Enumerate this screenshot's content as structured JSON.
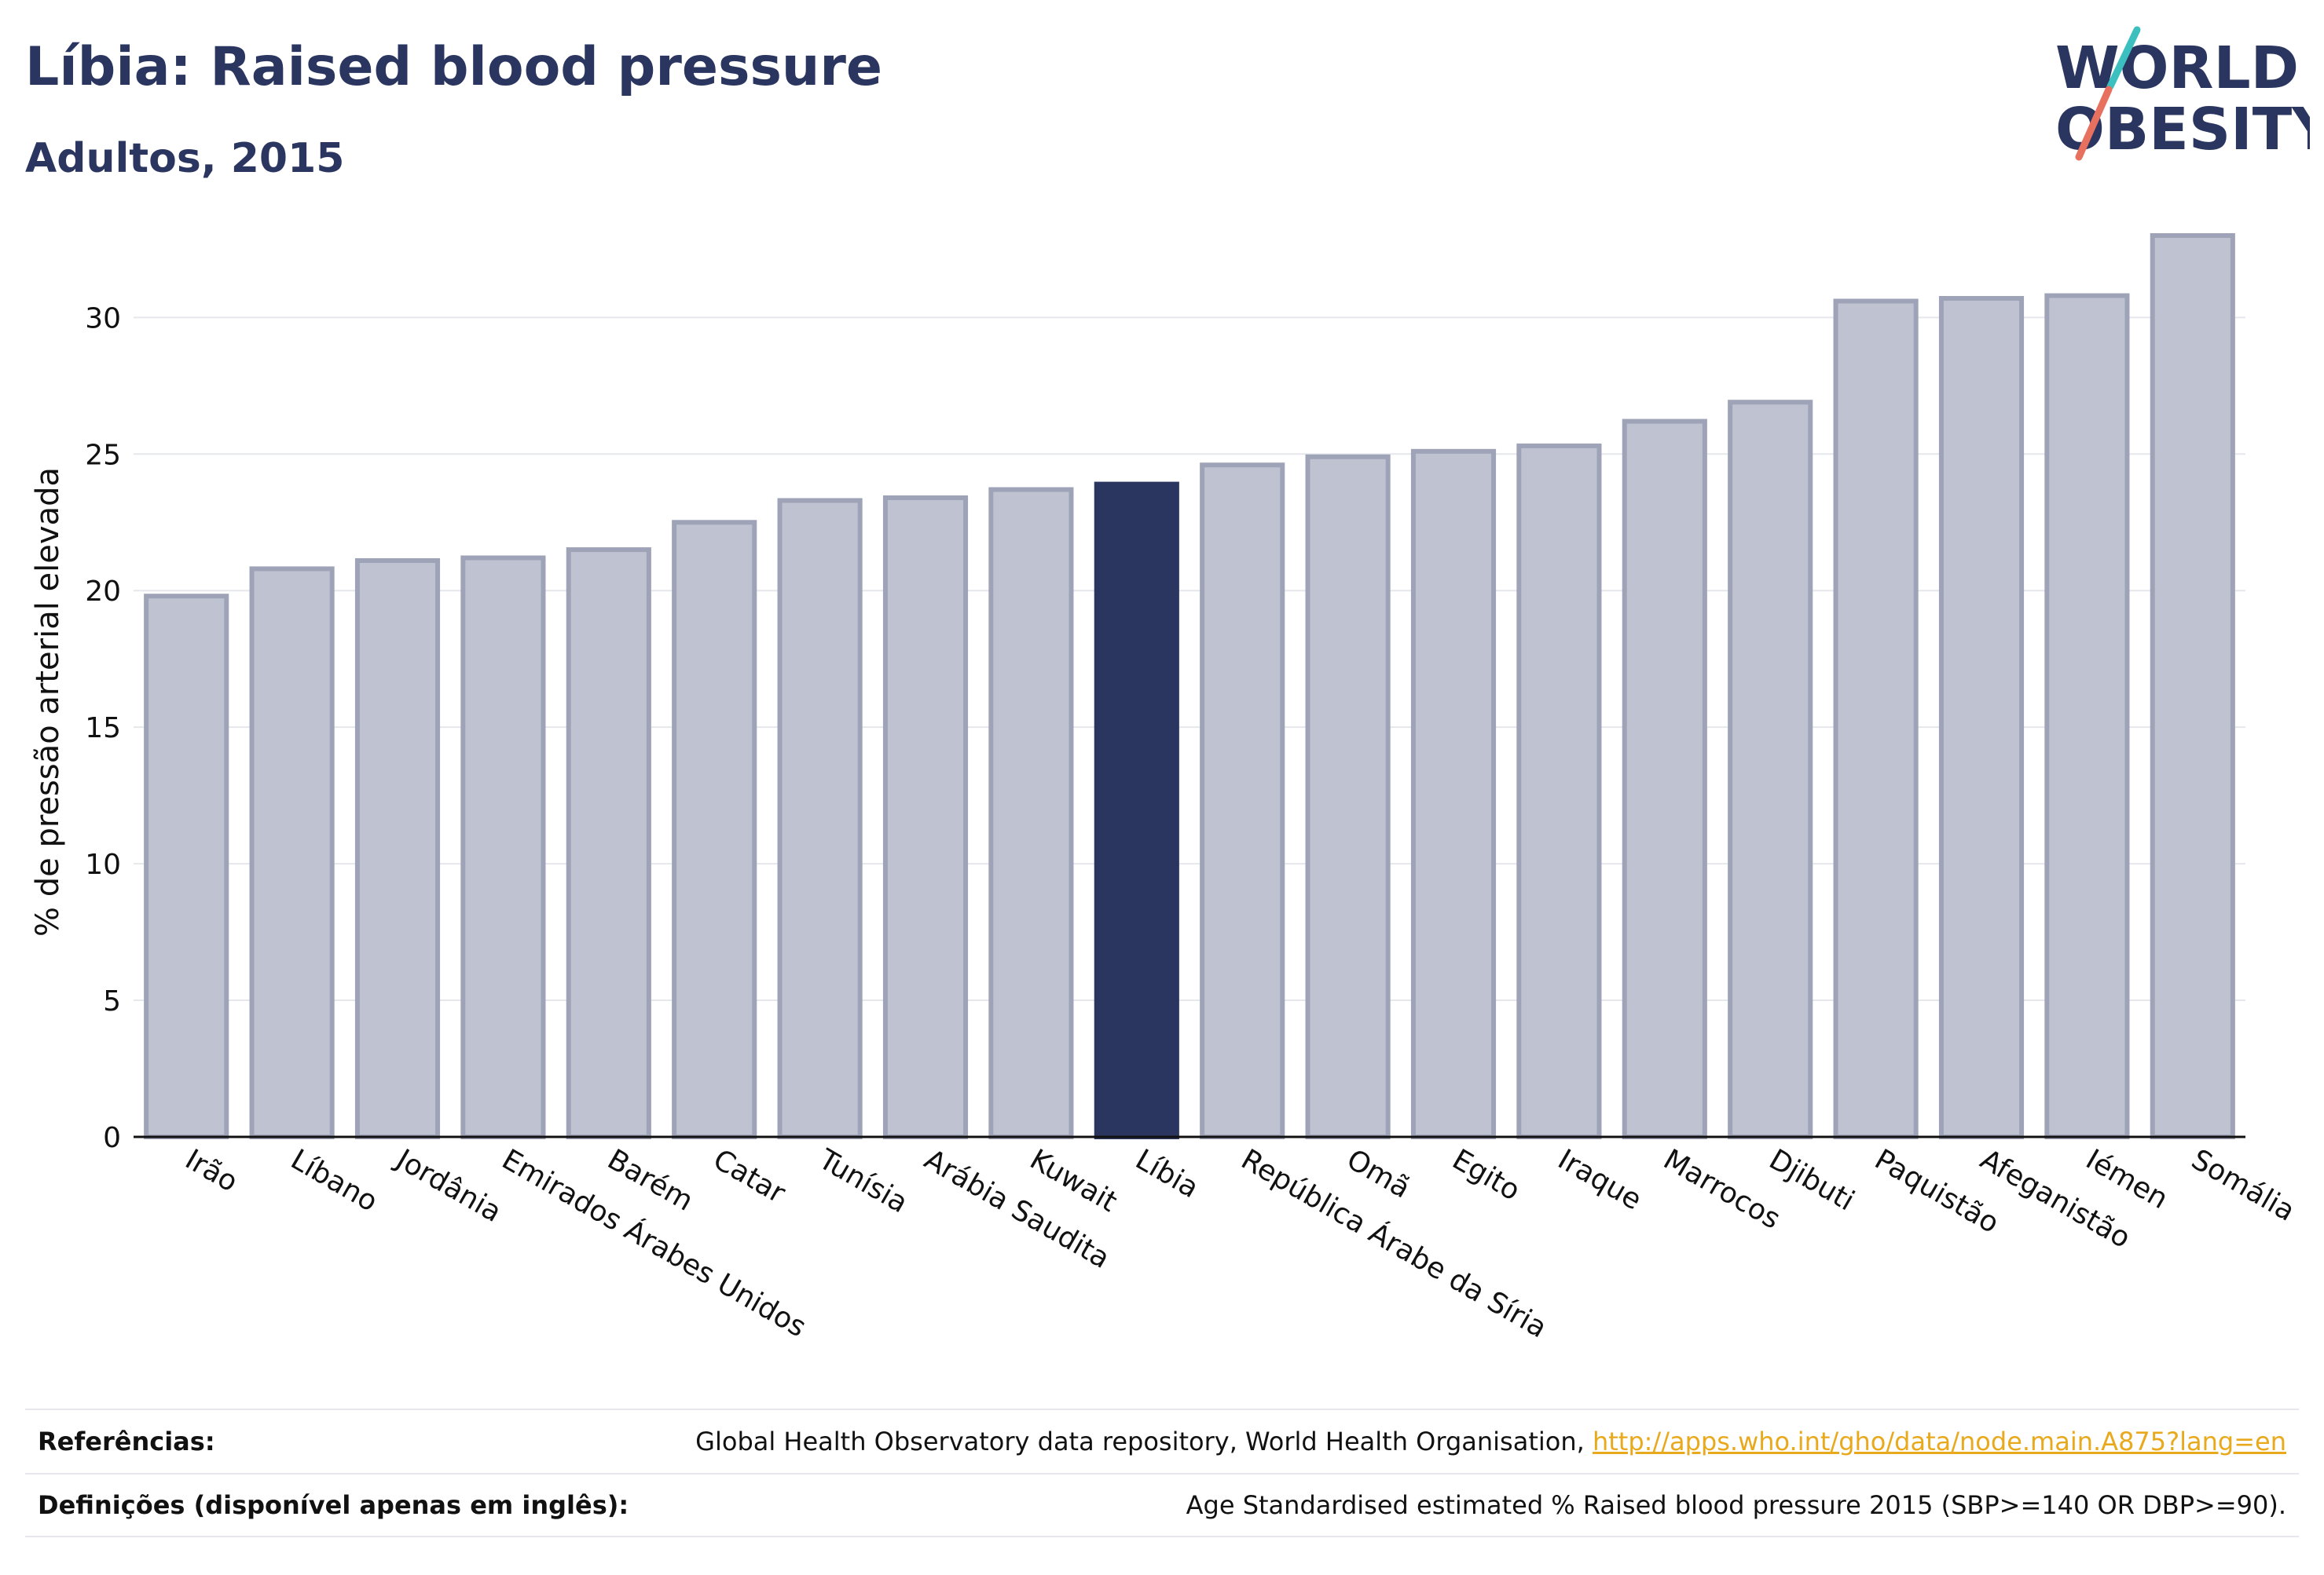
{
  "header": {
    "title": "Líbia: Raised blood pressure",
    "subtitle": "Adultos, 2015"
  },
  "logo": {
    "line1": "WORLD",
    "line2": "OBESITY",
    "accent_teal": "#3bbfbf",
    "accent_coral": "#e8705f"
  },
  "colors": {
    "highlight": "#2a3560",
    "bar_fill": "#bfc2d0",
    "bar_stroke": "#9ea3b8",
    "grid": "#e6e7ec",
    "axis": "#111111"
  },
  "chart_data": {
    "type": "bar",
    "title": "Líbia: Raised blood pressure",
    "subtitle": "Adultos, 2015",
    "xlabel": "",
    "ylabel": "% de pressão arterial elevada",
    "ylim": [
      0,
      33
    ],
    "yticks": [
      0,
      5,
      10,
      15,
      20,
      25,
      30
    ],
    "grid": true,
    "highlight_category": "Líbia",
    "categories": [
      "Irão",
      "Líbano",
      "Jordânia",
      "Emirados Árabes Unidos",
      "Barém",
      "Catar",
      "Tunísia",
      "Arábia Saudita",
      "Kuwait",
      "Líbia",
      "República Árabe da Síria",
      "Omã",
      "Egito",
      "Iraque",
      "Marrocos",
      "Djibuti",
      "Paquistão",
      "Afeganistão",
      "Iémen",
      "Somália"
    ],
    "values": [
      19.8,
      20.8,
      21.1,
      21.2,
      21.5,
      22.5,
      23.3,
      23.4,
      23.7,
      23.9,
      24.6,
      24.9,
      25.1,
      25.3,
      26.2,
      26.9,
      30.6,
      30.7,
      30.8,
      33.0
    ]
  },
  "footer": {
    "references_label": "Referências:",
    "references_text": "Global Health Observatory data repository, World Health Organisation, ",
    "references_link": "http://apps.who.int/gho/data/node.main.A875?lang=en",
    "definitions_label": "Definições (disponível apenas em inglês):",
    "definitions_text": "Age Standardised estimated % Raised blood pressure 2015 (SBP>=140 OR DBP>=90)."
  }
}
